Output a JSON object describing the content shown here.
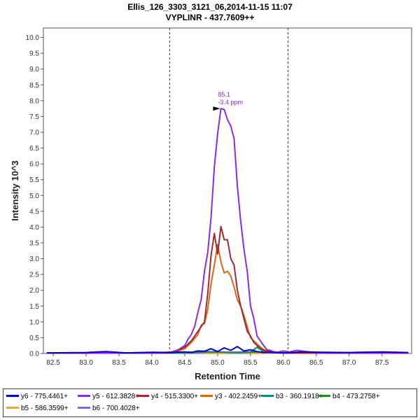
{
  "chart_data": {
    "type": "line",
    "title": "Ellis_126_3303_3121_06,2014-11-15 11:07",
    "subtitle": "VYPLINR - 437.7609++",
    "xlabel": "Retention Time",
    "ylabel": "Intensity 10^3",
    "xlim": [
      82.35,
      87.95
    ],
    "ylim": [
      0,
      10.3
    ],
    "x_ticks": [
      "82.5",
      "83.0",
      "83.5",
      "84.0",
      "84.5",
      "85.0",
      "85.5",
      "86.0",
      "86.5",
      "87.0",
      "87.5"
    ],
    "y_ticks": [
      "0.0",
      "0.5",
      "1.0",
      "1.5",
      "2.0",
      "2.5",
      "3.0",
      "3.5",
      "4.0",
      "4.5",
      "5.0",
      "5.5",
      "6.0",
      "6.5",
      "7.0",
      "7.5",
      "8.0",
      "8.5",
      "9.0",
      "9.5",
      "10.0"
    ],
    "integration_bounds": [
      84.27,
      86.07
    ],
    "peak_annotation": {
      "x": 85.08,
      "y": 7.75,
      "label_rt": "85.1",
      "label_ppm": "-3.4 ppm"
    },
    "series": [
      {
        "name": "y6 - 775.4461+",
        "color": "#0000cc",
        "x": [
          82.4,
          83.0,
          83.3,
          83.6,
          84.0,
          84.3,
          84.5,
          84.6,
          84.7,
          84.8,
          84.9,
          85.0,
          85.1,
          85.2,
          85.3,
          85.4,
          85.5,
          85.6,
          85.7,
          85.8,
          86.0,
          86.3,
          86.6,
          87.0,
          87.5,
          87.9
        ],
        "values": [
          0.02,
          0.03,
          0.06,
          0.02,
          0.04,
          0.03,
          0.05,
          0.03,
          0.08,
          0.07,
          0.15,
          0.06,
          0.18,
          0.1,
          0.22,
          0.08,
          0.12,
          0.06,
          0.03,
          0.04,
          0.02,
          0.05,
          0.04,
          0.03,
          0.05,
          0.03
        ]
      },
      {
        "name": "y5 - 612.3828+",
        "color": "#8c2be2",
        "x": [
          82.4,
          83.0,
          83.5,
          84.0,
          84.3,
          84.4,
          84.5,
          84.55,
          84.6,
          84.65,
          84.7,
          84.75,
          84.8,
          84.85,
          84.9,
          84.95,
          85.0,
          85.05,
          85.1,
          85.15,
          85.2,
          85.25,
          85.3,
          85.35,
          85.4,
          85.45,
          85.5,
          85.55,
          85.6,
          85.65,
          85.7,
          85.75,
          85.8,
          85.85,
          85.9,
          86.0,
          86.1,
          86.2,
          86.4,
          86.5,
          86.6,
          86.8,
          87.0,
          87.5,
          87.9
        ],
        "values": [
          0.01,
          0.02,
          0.01,
          0.01,
          0.05,
          0.12,
          0.25,
          0.45,
          0.6,
          0.85,
          1.3,
          1.7,
          2.6,
          3.2,
          4.3,
          5.9,
          6.95,
          7.75,
          7.72,
          7.4,
          7.2,
          6.8,
          5.3,
          4.2,
          3.3,
          2.6,
          1.5,
          1.1,
          0.55,
          0.4,
          0.25,
          0.12,
          0.1,
          0.06,
          0.04,
          0.08,
          0.05,
          0.1,
          0.05,
          0.03,
          0.02,
          0.02,
          0.01,
          0.03,
          0.02
        ]
      },
      {
        "name": "y4 - 515.3300+",
        "color": "#a52a2a",
        "x": [
          82.4,
          83.5,
          84.3,
          84.4,
          84.5,
          84.6,
          84.7,
          84.75,
          84.8,
          84.85,
          84.9,
          84.95,
          85.0,
          85.05,
          85.1,
          85.15,
          85.2,
          85.25,
          85.3,
          85.35,
          85.4,
          85.45,
          85.5,
          85.55,
          85.6,
          85.65,
          85.7,
          85.8,
          85.9,
          86.0,
          86.2,
          87.0,
          87.9
        ],
        "values": [
          0.01,
          0.01,
          0.02,
          0.1,
          0.2,
          0.4,
          0.7,
          0.85,
          1.0,
          1.9,
          3.1,
          3.8,
          3.15,
          4.02,
          3.6,
          3.6,
          3.0,
          2.8,
          2.0,
          1.5,
          1.1,
          0.7,
          0.55,
          0.35,
          0.25,
          0.18,
          0.1,
          0.06,
          0.03,
          0.02,
          0.01,
          0.01,
          0.01
        ]
      },
      {
        "name": "y3 - 402.2459+",
        "color": "#d2691e",
        "x": [
          82.4,
          83.5,
          84.3,
          84.4,
          84.5,
          84.6,
          84.7,
          84.75,
          84.8,
          84.85,
          84.9,
          84.95,
          85.0,
          85.05,
          85.1,
          85.15,
          85.2,
          85.25,
          85.3,
          85.35,
          85.4,
          85.45,
          85.5,
          85.55,
          85.6,
          85.65,
          85.7,
          85.8,
          85.9,
          86.0,
          86.2,
          87.0,
          87.5,
          87.9
        ],
        "values": [
          0.01,
          0.01,
          0.03,
          0.08,
          0.15,
          0.35,
          0.6,
          0.9,
          0.95,
          1.4,
          2.2,
          2.8,
          3.45,
          2.9,
          2.55,
          2.6,
          2.45,
          2.1,
          1.7,
          1.5,
          1.2,
          0.85,
          0.5,
          0.4,
          0.3,
          0.2,
          0.12,
          0.07,
          0.04,
          0.02,
          0.01,
          0.01,
          0.04,
          0.01
        ]
      },
      {
        "name": "b3 - 360.1918+",
        "color": "#008b8b",
        "x": [
          82.4,
          83.0,
          84.0,
          84.3,
          84.6,
          84.9,
          85.2,
          85.5,
          85.6,
          85.7,
          85.8,
          86.0,
          86.5,
          87.0,
          87.9
        ],
        "values": [
          0.01,
          0.02,
          0.01,
          0.02,
          0.03,
          0.05,
          0.04,
          0.05,
          0.2,
          0.05,
          0.03,
          0.02,
          0.01,
          0.02,
          0.01
        ]
      },
      {
        "name": "b4 - 473.2758+",
        "color": "#228b22",
        "x": [
          82.4,
          83.0,
          84.0,
          84.5,
          84.8,
          85.0,
          85.3,
          85.6,
          85.9,
          86.2,
          86.6,
          87.0,
          87.5,
          87.9
        ],
        "values": [
          0.01,
          0.01,
          0.02,
          0.04,
          0.06,
          0.05,
          0.03,
          0.05,
          0.03,
          0.02,
          0.01,
          0.02,
          0.01,
          0.01
        ]
      },
      {
        "name": "b5 - 586.3599+",
        "color": "#f5a623",
        "x": [
          82.4,
          83.5,
          84.4,
          84.7,
          85.0,
          85.3,
          85.6,
          86.0,
          86.5,
          87.0,
          87.5,
          87.6,
          87.9
        ],
        "values": [
          0.01,
          0.01,
          0.02,
          0.03,
          0.02,
          0.03,
          0.02,
          0.01,
          0.02,
          0.01,
          0.03,
          0.01,
          0.01
        ]
      },
      {
        "name": "b6 - 700.4028+",
        "color": "#7b68ee",
        "x": [
          82.4,
          83.5,
          84.5,
          85.0,
          85.5,
          86.0,
          86.5,
          87.0,
          87.9
        ],
        "values": [
          0.01,
          0.01,
          0.02,
          0.02,
          0.02,
          0.01,
          0.02,
          0.01,
          0.01
        ]
      }
    ]
  }
}
